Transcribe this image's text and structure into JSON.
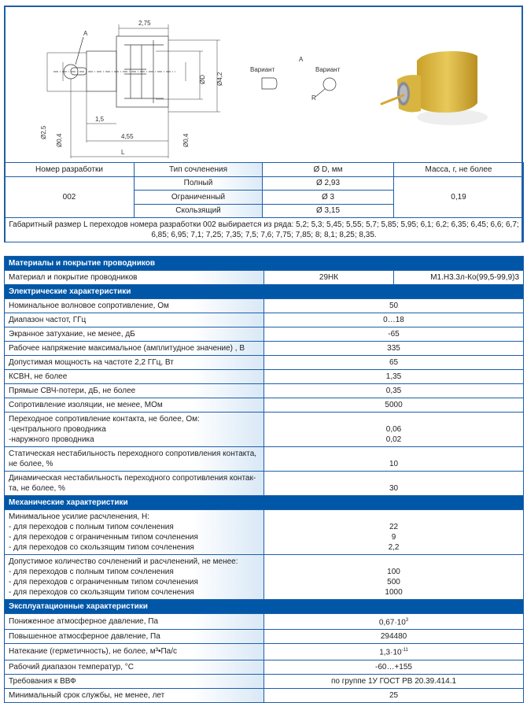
{
  "drawing": {
    "dims": {
      "d_275": "2,75",
      "d_15": "1,5",
      "d_455": "4,55",
      "L": "L",
      "d_phi25": "Ø2,5",
      "d_phi04a": "Ø0,4",
      "d_phi04b": "Ø0,4",
      "d_phiD": "ØD",
      "d_phi42": "Ø4,2",
      "A": "A",
      "detail_A": "A",
      "variant1": "Вариант",
      "variant2": "Вариант",
      "R": "R"
    }
  },
  "photo": {
    "description_icon": "gold-connector-photo"
  },
  "variants_table": {
    "headers": [
      "Номер разработки",
      "Тип сочленения",
      "Ø D, мм",
      "Масса, г, не более"
    ],
    "number": "002",
    "mass": "0,19",
    "rows": [
      {
        "type": "Полный",
        "d": "Ø 2,93"
      },
      {
        "type": "Ограниченный",
        "d": "Ø 3"
      },
      {
        "type": "Скользящий",
        "d": "Ø 3,15"
      }
    ],
    "note": "Габаритный размер L  переходов номера разработки 002 выбирается из ряда: 5,2; 5,3; 5,45; 5,55; 5,7; 5,85; 5,95; 6,1; 6,2; 6,35; 6,45; 6,6; 6,7; 6,85; 6,95; 7,1; 7,25; 7,35; 7,5; 7,6; 7,75; 7,85; 8; 8,1; 8,25; 8,35."
  },
  "specs": {
    "colors": {
      "header": "#0057a8",
      "border": "#1e5fa8"
    },
    "sections": [
      {
        "title": "Материалы и покрытие проводников",
        "rows": [
          {
            "label": [
              "Материал и покрытие проводников"
            ],
            "split": [
              "29НК",
              "М1.Н3.3л-Ко(99,5-99,9)3"
            ]
          }
        ]
      },
      {
        "title": "Электрические характеристики",
        "rows": [
          {
            "label": [
              "Номинальное волновое сопротивление, Ом"
            ],
            "values": [
              "50"
            ]
          },
          {
            "label": [
              "Диапазон частот, ГГц"
            ],
            "values": [
              "0…18"
            ]
          },
          {
            "label": [
              "Экранное затухание, не менее, дБ"
            ],
            "values": [
              "-65"
            ]
          },
          {
            "label": [
              "Рабочее напряжение максимальное (амплитудное значение) , В"
            ],
            "values": [
              "335"
            ]
          },
          {
            "label": [
              "Допустимая мощность на частоте 2,2 ГГц, Вт"
            ],
            "values": [
              "65"
            ]
          },
          {
            "label": [
              "КСВН, не более"
            ],
            "values": [
              "1,35"
            ]
          },
          {
            "label": [
              "Прямые СВЧ-потери, дБ, не более"
            ],
            "values": [
              "0,35"
            ]
          },
          {
            "label": [
              "Сопротивление изоляции, не менее, МОм"
            ],
            "values": [
              "5000"
            ]
          },
          {
            "label": [
              "Переходное сопротивление контакта, не более, Ом:",
              "-центрального проводника",
              "-наружного проводника"
            ],
            "values": [
              "0,06",
              "0,02"
            ]
          },
          {
            "label": [
              "Статическая нестабильность переходного сопротивления контакта,",
              "не более, %"
            ],
            "values": [
              "10"
            ]
          },
          {
            "label": [
              "Динамическая нестабильность переходного сопротивления контак-",
              "та, не более, %"
            ],
            "values": [
              "30"
            ]
          }
        ]
      },
      {
        "title": "Механические характеристики",
        "rows": [
          {
            "label": [
              "Минимальное усилие расчленения, Н:",
              "- для переходов с полным типом сочленения",
              "- для переходов с ограниченным типом сочленения",
              "- для переходов со скользящим типом сочленения"
            ],
            "values": [
              "22",
              "9",
              "2,2"
            ]
          },
          {
            "label": [
              "Допустимое количество сочленений и расчленений, не менее:",
              "- для переходов с полным типом сочленения",
              "- для переходов с ограниченным типом сочленения",
              "- для переходов со скользящим типом сочленения"
            ],
            "values": [
              "100",
              "500",
              "1000"
            ]
          }
        ]
      },
      {
        "title": "Эксплуатационные характеристики",
        "rows": [
          {
            "label": [
              "Пониженное атмосферное давление, Па"
            ],
            "values": [
              "0,67·10"
            ],
            "sup": "3"
          },
          {
            "label": [
              "Повышенное атмосферное давление, Па"
            ],
            "values": [
              "294480"
            ]
          },
          {
            "label": [
              "Натекание (герметичность), не более, м³•Па/с"
            ],
            "values": [
              "1,3·10"
            ],
            "sup": "-11"
          },
          {
            "label": [
              "Рабочий диапазон температур, °С"
            ],
            "values": [
              "-60…+155"
            ]
          },
          {
            "label": [
              "Требования к ВВФ"
            ],
            "values": [
              "по группе 1У ГОСТ РВ 20.39.414.1"
            ]
          },
          {
            "label": [
              "Минимальный срок службы, не менее, лет"
            ],
            "values": [
              "25"
            ]
          }
        ]
      }
    ]
  }
}
